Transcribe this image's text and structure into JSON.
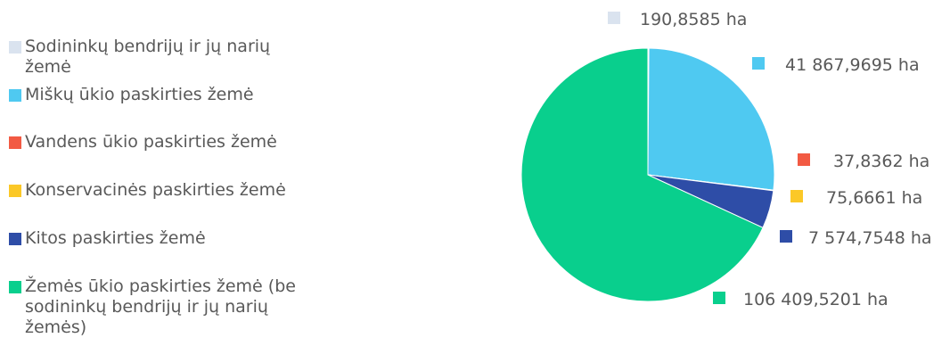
{
  "chart_data": {
    "type": "pie",
    "title": "",
    "legend_position": "left",
    "start_angle_deg": 0,
    "direction": "clockwise",
    "series": [
      {
        "label": "Sodininkų bendrijų ir jų narių žemė",
        "value": 190.8585,
        "value_text": "190,8585 ha",
        "color": "#dae3ef"
      },
      {
        "label": "Miškų ūkio paskirties žemė",
        "value": 41867.9695,
        "value_text": "41 867,9695 ha",
        "color": "#4fc9f1"
      },
      {
        "label": "Vandens ūkio paskirties žemė",
        "value": 37.8362,
        "value_text": "37,8362 ha",
        "color": "#f25a43"
      },
      {
        "label": "Konservacinės paskirties žemė",
        "value": 75.6661,
        "value_text": "75,6661 ha",
        "color": "#fbc827"
      },
      {
        "label": "Kitos paskirties žemė",
        "value": 7574.7548,
        "value_text": "7 574,7548 ha",
        "color": "#2e4da7"
      },
      {
        "label": "Žemės ūkio paskirties žemė (be sodininkų bendrijų ir jų narių žemės)",
        "value": 106409.5201,
        "value_text": "106 409,5201 ha",
        "color": "#09cf8d"
      }
    ]
  }
}
